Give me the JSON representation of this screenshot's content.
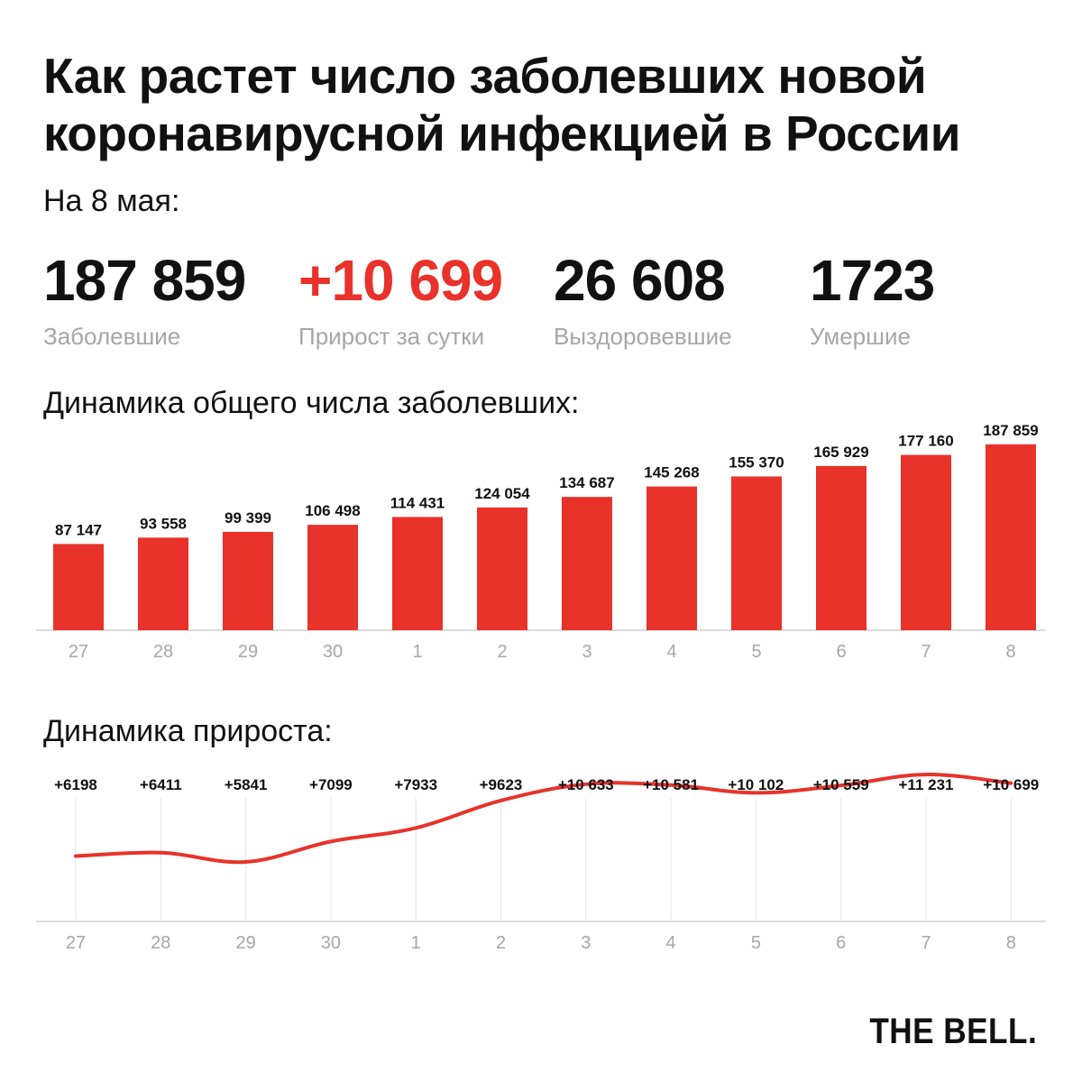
{
  "title": "Как растет число заболевших новой коронавирусной инфекцией в России",
  "as_of": "На 8 мая:",
  "stats": [
    {
      "value": "187 859",
      "label": "Заболевшие"
    },
    {
      "value": "+10 699",
      "label": "Прирост за сутки"
    },
    {
      "value": "26 608",
      "label": "Выздоровевшие"
    },
    {
      "value": "1723",
      "label": "Умершие"
    }
  ],
  "colors": {
    "accent": "#e8322a",
    "text": "#111111",
    "muted": "#a6a6a6",
    "grid": "#e3e3e3"
  },
  "logo": "THE BELL.",
  "chart_data": [
    {
      "type": "bar",
      "title": "Динамика общего числа заболевших:",
      "categories": [
        "27",
        "28",
        "29",
        "30",
        "1",
        "2",
        "3",
        "4",
        "5",
        "6",
        "7",
        "8"
      ],
      "values": [
        87147,
        93558,
        99399,
        106498,
        114431,
        124054,
        134687,
        145268,
        155370,
        165929,
        177160,
        187859
      ],
      "value_labels": [
        "87 147",
        "93 558",
        "99 399",
        "106 498",
        "114 431",
        "124 054",
        "134 687",
        "145 268",
        "155 370",
        "165 929",
        "177 160",
        "187 859"
      ],
      "grid": false
    },
    {
      "type": "line",
      "title": "Динамика прироста:",
      "categories": [
        "27",
        "28",
        "29",
        "30",
        "1",
        "2",
        "3",
        "4",
        "5",
        "6",
        "7",
        "8"
      ],
      "values": [
        6198,
        6411,
        5841,
        7099,
        7933,
        9623,
        10633,
        10581,
        10102,
        10559,
        11231,
        10699
      ],
      "value_labels": [
        "+6198",
        "+6411",
        "+5841",
        "+7099",
        "+7933",
        "+9623",
        "+10 633",
        "+10 581",
        "+10 102",
        "+10 559",
        "+11 231",
        "+10 699"
      ],
      "grid": true
    }
  ]
}
